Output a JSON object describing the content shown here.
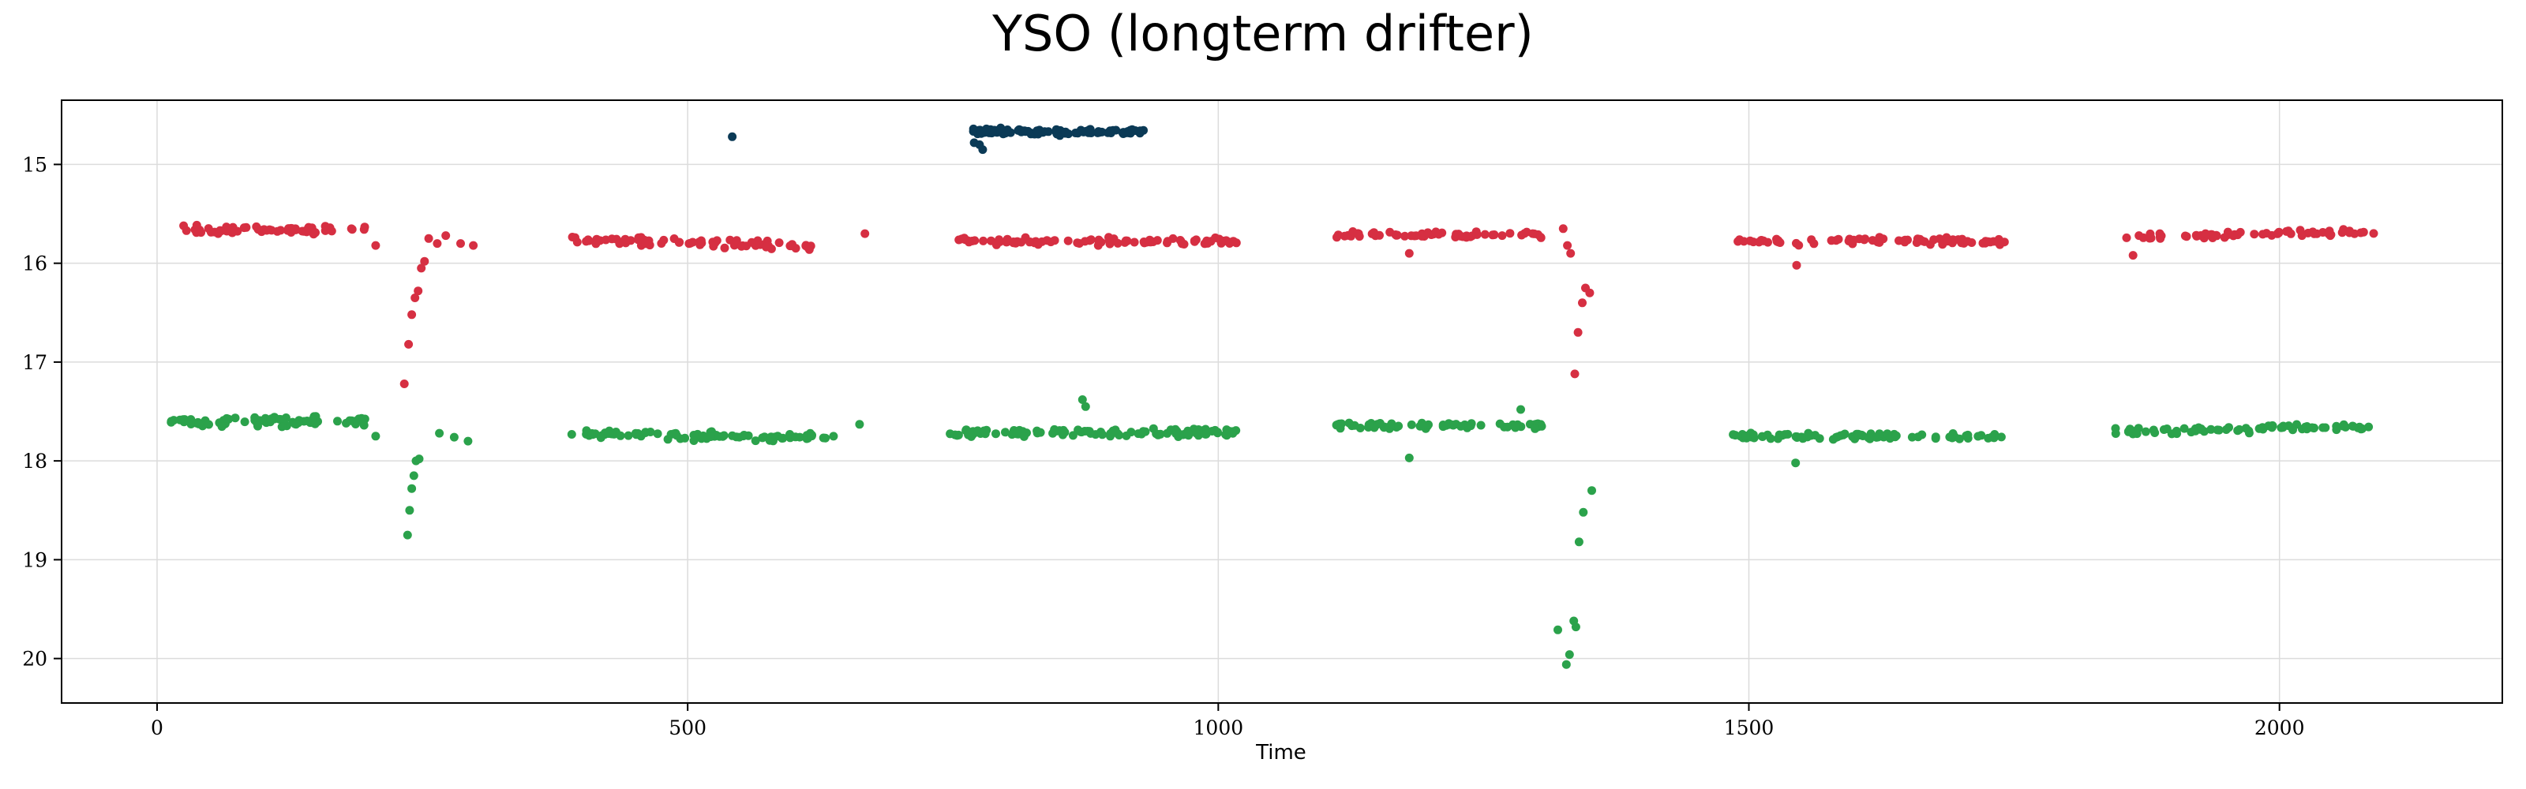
{
  "chart_data": {
    "type": "scatter",
    "title": "YSO (longterm drifter)",
    "xlabel": "Time",
    "ylabel": "",
    "xlim": [
      -90,
      2210
    ],
    "ylim": [
      14.35,
      20.45
    ],
    "y_inverted": true,
    "grid": true,
    "x_ticks": [
      0,
      500,
      1000,
      1500,
      2000
    ],
    "y_ticks": [
      15,
      16,
      17,
      18,
      19,
      20
    ],
    "series": [
      {
        "color": "#d62f42",
        "segments": [
          {
            "x_start": 20,
            "x_end": 200,
            "y_base": 15.66,
            "y_slope": 0.0,
            "spread": 0.06,
            "count": 60
          },
          {
            "x_start": 390,
            "x_end": 620,
            "y_base": 15.76,
            "y_slope": 0.0003,
            "spread": 0.06,
            "count": 70
          },
          {
            "x_start": 755,
            "x_end": 1020,
            "y_base": 15.78,
            "y_slope": 0.0,
            "spread": 0.05,
            "count": 90
          },
          {
            "x_start": 1110,
            "x_end": 1310,
            "y_base": 15.71,
            "y_slope": 0.0,
            "spread": 0.05,
            "count": 55
          },
          {
            "x_start": 1480,
            "x_end": 1745,
            "y_base": 15.78,
            "y_slope": 0.0,
            "spread": 0.05,
            "count": 70
          },
          {
            "x_start": 1845,
            "x_end": 2090,
            "y_base": 15.74,
            "y_slope": -0.00025,
            "spread": 0.04,
            "count": 60
          }
        ],
        "points": [
          {
            "x": 25,
            "y": 15.62
          },
          {
            "x": 206,
            "y": 15.82
          },
          {
            "x": 233,
            "y": 17.22
          },
          {
            "x": 237,
            "y": 16.82
          },
          {
            "x": 240,
            "y": 16.52
          },
          {
            "x": 243,
            "y": 16.35
          },
          {
            "x": 246,
            "y": 16.28
          },
          {
            "x": 249,
            "y": 16.05
          },
          {
            "x": 252,
            "y": 15.98
          },
          {
            "x": 256,
            "y": 15.75
          },
          {
            "x": 264,
            "y": 15.8
          },
          {
            "x": 272,
            "y": 15.72
          },
          {
            "x": 286,
            "y": 15.8
          },
          {
            "x": 298,
            "y": 15.82
          },
          {
            "x": 667,
            "y": 15.7
          },
          {
            "x": 1180,
            "y": 15.9
          },
          {
            "x": 1325,
            "y": 15.65
          },
          {
            "x": 1329,
            "y": 15.82
          },
          {
            "x": 1332,
            "y": 15.9
          },
          {
            "x": 1336,
            "y": 17.12
          },
          {
            "x": 1339,
            "y": 16.7
          },
          {
            "x": 1343,
            "y": 16.4
          },
          {
            "x": 1346,
            "y": 16.25
          },
          {
            "x": 1350,
            "y": 16.3
          },
          {
            "x": 1545,
            "y": 16.02
          },
          {
            "x": 1862,
            "y": 15.92
          }
        ]
      },
      {
        "color": "#2ba24b",
        "segments": [
          {
            "x_start": 10,
            "x_end": 200,
            "y_base": 17.6,
            "y_slope": 0.0,
            "spread": 0.07,
            "count": 75
          },
          {
            "x_start": 390,
            "x_end": 640,
            "y_base": 17.72,
            "y_slope": 0.0002,
            "spread": 0.06,
            "count": 80
          },
          {
            "x_start": 745,
            "x_end": 1020,
            "y_base": 17.71,
            "y_slope": 0.0,
            "spread": 0.06,
            "count": 110
          },
          {
            "x_start": 1110,
            "x_end": 1310,
            "y_base": 17.64,
            "y_slope": 0.0,
            "spread": 0.05,
            "count": 65
          },
          {
            "x_start": 1478,
            "x_end": 1745,
            "y_base": 17.75,
            "y_slope": 0.0,
            "spread": 0.05,
            "count": 80
          },
          {
            "x_start": 1845,
            "x_end": 2085,
            "y_base": 17.7,
            "y_slope": -0.0002,
            "spread": 0.05,
            "count": 70
          }
        ],
        "points": [
          {
            "x": 206,
            "y": 17.75
          },
          {
            "x": 236,
            "y": 18.75
          },
          {
            "x": 238,
            "y": 18.5
          },
          {
            "x": 240,
            "y": 18.28
          },
          {
            "x": 242,
            "y": 18.15
          },
          {
            "x": 244,
            "y": 18.0
          },
          {
            "x": 247,
            "y": 17.98
          },
          {
            "x": 266,
            "y": 17.72
          },
          {
            "x": 280,
            "y": 17.76
          },
          {
            "x": 293,
            "y": 17.8
          },
          {
            "x": 662,
            "y": 17.63
          },
          {
            "x": 872,
            "y": 17.38
          },
          {
            "x": 875,
            "y": 17.45
          },
          {
            "x": 1180,
            "y": 17.97
          },
          {
            "x": 1285,
            "y": 17.48
          },
          {
            "x": 1320,
            "y": 19.71
          },
          {
            "x": 1328,
            "y": 20.06
          },
          {
            "x": 1331,
            "y": 19.96
          },
          {
            "x": 1335,
            "y": 19.62
          },
          {
            "x": 1337,
            "y": 19.68
          },
          {
            "x": 1340,
            "y": 18.82
          },
          {
            "x": 1344,
            "y": 18.52
          },
          {
            "x": 1352,
            "y": 18.3
          },
          {
            "x": 1544,
            "y": 18.02
          }
        ]
      },
      {
        "color": "#0b3a56",
        "segments": [
          {
            "x_start": 765,
            "x_end": 930,
            "y_base": 14.67,
            "y_slope": 0.0,
            "spread": 0.045,
            "count": 95
          }
        ],
        "points": [
          {
            "x": 542,
            "y": 14.72
          },
          {
            "x": 770,
            "y": 14.78
          },
          {
            "x": 775,
            "y": 14.8
          },
          {
            "x": 778,
            "y": 14.85
          },
          {
            "x": 795,
            "y": 14.63
          }
        ]
      }
    ]
  }
}
